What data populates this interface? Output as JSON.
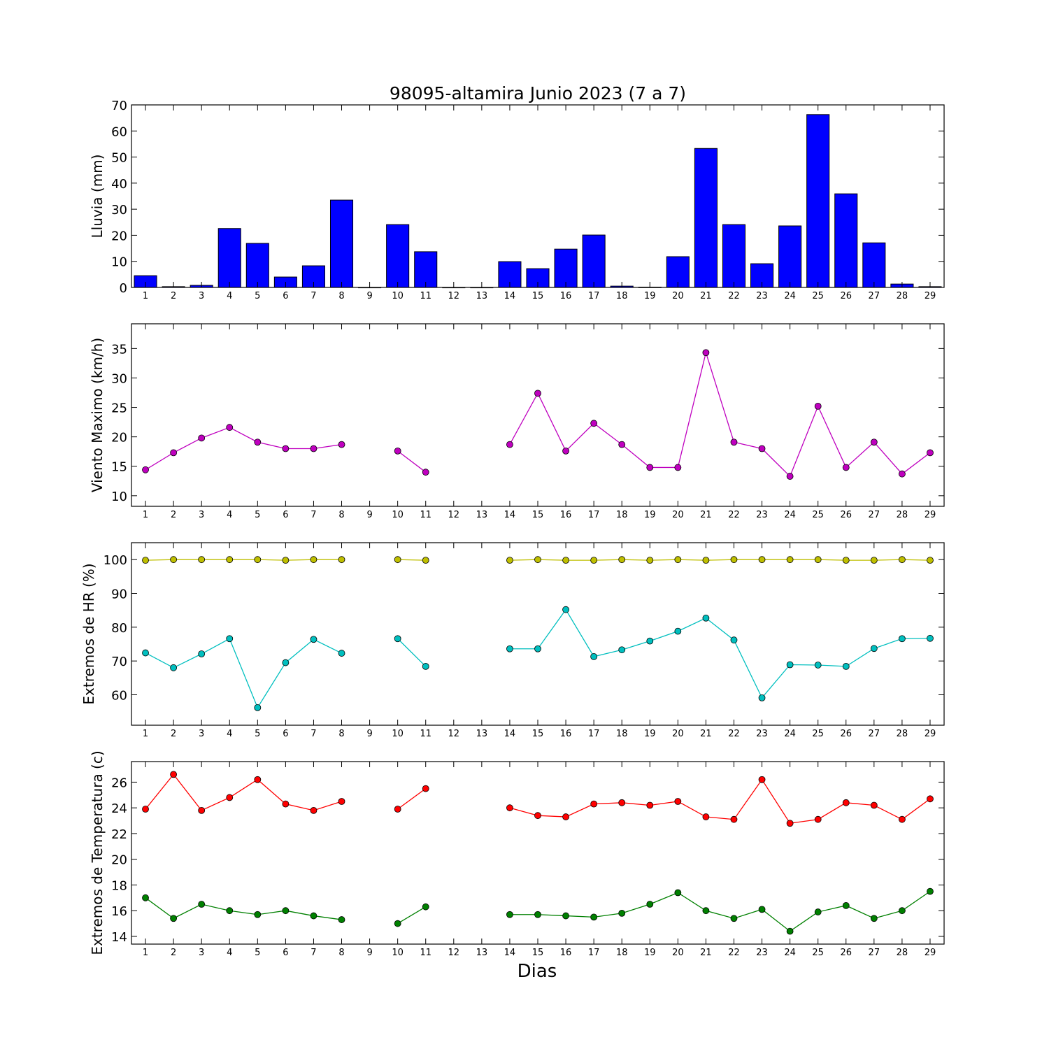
{
  "chart_data": [
    {
      "type": "bar",
      "title": "98095-altamira Junio 2023  (7 a 7)",
      "ylabel": "Lluvia (mm)",
      "xlabel": "",
      "ylim": [
        0,
        70
      ],
      "yticks": [
        0,
        10,
        20,
        30,
        40,
        50,
        60,
        70
      ],
      "xlim": [
        0.5,
        29.5
      ],
      "categories": [
        "1",
        "2",
        "3",
        "4",
        "5",
        "6",
        "7",
        "8",
        "9",
        "10",
        "11",
        "12",
        "13",
        "14",
        "15",
        "16",
        "17",
        "18",
        "19",
        "20",
        "21",
        "22",
        "23",
        "24",
        "25",
        "26",
        "27",
        "28",
        "29"
      ],
      "values": [
        4.5,
        0.3,
        0.8,
        22.6,
        16.9,
        4.0,
        8.3,
        33.5,
        0,
        24.1,
        13.7,
        0,
        0,
        9.9,
        7.2,
        14.7,
        20.1,
        0.5,
        0.1,
        11.8,
        53.3,
        24.1,
        9.1,
        23.6,
        66.3,
        35.9,
        17.1,
        1.3,
        0.3
      ],
      "color": "#0000ff"
    },
    {
      "type": "line",
      "title": "",
      "ylabel": "Viento Maximo (km/h)",
      "xlabel": "",
      "ylim": [
        8.2,
        39.2
      ],
      "yticks": [
        10,
        15,
        20,
        25,
        30,
        35
      ],
      "xlim": [
        0.5,
        29.5
      ],
      "x": [
        1,
        2,
        3,
        4,
        5,
        6,
        7,
        8,
        9,
        10,
        11,
        12,
        13,
        14,
        15,
        16,
        17,
        18,
        19,
        20,
        21,
        22,
        23,
        24,
        25,
        26,
        27,
        28,
        29
      ],
      "series": [
        {
          "color": "#bf00bf",
          "values": [
            14.4,
            17.3,
            19.8,
            21.6,
            19.1,
            18.0,
            18.0,
            18.7,
            null,
            17.6,
            14.0,
            null,
            null,
            18.7,
            27.4,
            17.6,
            22.3,
            18.7,
            14.8,
            14.8,
            34.3,
            19.1,
            18.0,
            13.3,
            25.2,
            14.8,
            19.1,
            13.7,
            17.3
          ]
        }
      ]
    },
    {
      "type": "line",
      "title": "",
      "ylabel": "Extremos de HR (%)",
      "xlabel": "",
      "ylim": [
        51,
        105
      ],
      "yticks": [
        60,
        70,
        80,
        90,
        100
      ],
      "xlim": [
        0.5,
        29.5
      ],
      "x": [
        1,
        2,
        3,
        4,
        5,
        6,
        7,
        8,
        9,
        10,
        11,
        12,
        13,
        14,
        15,
        16,
        17,
        18,
        19,
        20,
        21,
        22,
        23,
        24,
        25,
        26,
        27,
        28,
        29
      ],
      "series": [
        {
          "color": "#bfbf00",
          "values": [
            99.8,
            100,
            100,
            100,
            100,
            99.8,
            100,
            100,
            null,
            100,
            99.8,
            null,
            null,
            99.8,
            100,
            99.8,
            99.8,
            100,
            99.8,
            100,
            99.8,
            100,
            100,
            100,
            100,
            99.8,
            99.8,
            100,
            99.8
          ]
        },
        {
          "color": "#00bfbf",
          "values": [
            72.4,
            68.0,
            72.1,
            76.6,
            56.2,
            69.5,
            76.4,
            72.3,
            null,
            76.6,
            68.4,
            null,
            null,
            73.6,
            73.6,
            85.2,
            71.3,
            73.3,
            75.9,
            78.8,
            82.7,
            76.2,
            59.1,
            68.9,
            68.8,
            68.4,
            73.7,
            76.6,
            76.7
          ]
        }
      ]
    },
    {
      "type": "line",
      "title": "",
      "ylabel": "Extremos de Temperatura (c)",
      "xlabel": "Dias",
      "ylim": [
        13.4,
        27.6
      ],
      "yticks": [
        14,
        16,
        18,
        20,
        22,
        24,
        26
      ],
      "xlim": [
        0.5,
        29.5
      ],
      "x": [
        1,
        2,
        3,
        4,
        5,
        6,
        7,
        8,
        9,
        10,
        11,
        12,
        13,
        14,
        15,
        16,
        17,
        18,
        19,
        20,
        21,
        22,
        23,
        24,
        25,
        26,
        27,
        28,
        29
      ],
      "series": [
        {
          "color": "#ff0000",
          "values": [
            23.9,
            26.6,
            23.8,
            24.8,
            26.2,
            24.3,
            23.8,
            24.5,
            null,
            23.9,
            25.5,
            null,
            null,
            24.0,
            23.4,
            23.3,
            24.3,
            24.4,
            24.2,
            24.5,
            23.3,
            23.1,
            26.2,
            22.8,
            23.1,
            24.4,
            24.2,
            23.1,
            24.7
          ]
        },
        {
          "color": "#008000",
          "values": [
            17.0,
            15.4,
            16.5,
            16.0,
            15.7,
            16.0,
            15.6,
            15.3,
            null,
            15.0,
            16.3,
            null,
            null,
            15.7,
            15.7,
            15.6,
            15.5,
            15.8,
            16.5,
            17.4,
            16.0,
            15.4,
            16.1,
            14.4,
            15.9,
            16.4,
            15.4,
            16.0,
            17.5
          ]
        }
      ]
    }
  ]
}
